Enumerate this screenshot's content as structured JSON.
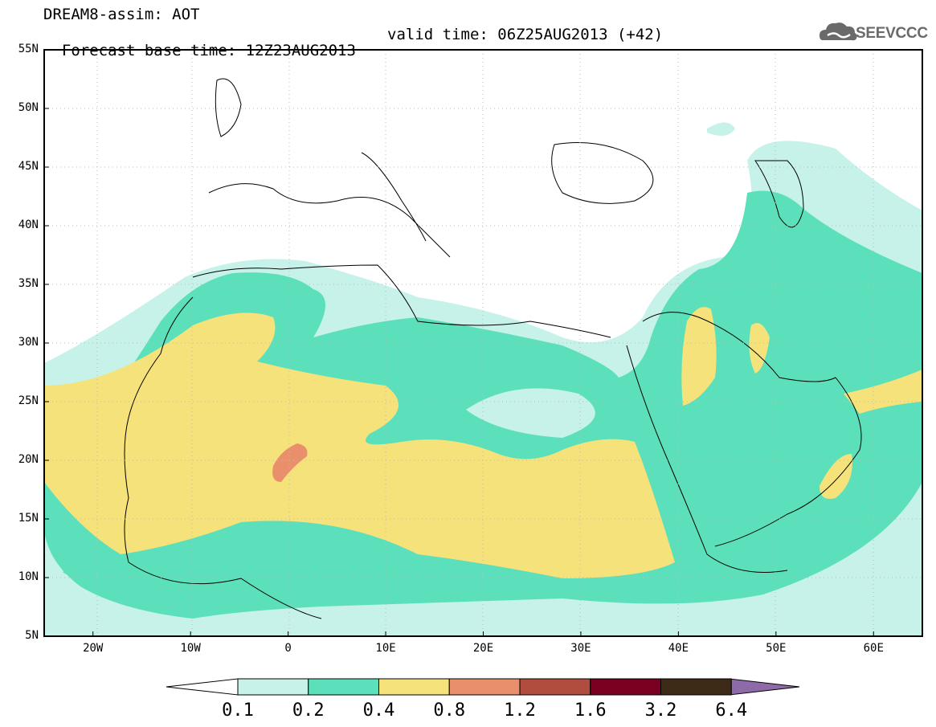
{
  "header": {
    "line1": "DREAM8-assim: AOT",
    "line2_left": "Forecast base time: 12Z23AUG2013",
    "line2_right": "valid time: 06Z25AUG2013 (+42)"
  },
  "logo": {
    "text": "SEEVCCC",
    "icon": "cloud-icon"
  },
  "map": {
    "lat_labels": [
      "55N",
      "50N",
      "45N",
      "40N",
      "35N",
      "30N",
      "25N",
      "20N",
      "15N",
      "10N",
      "5N"
    ],
    "lon_labels": [
      "20W",
      "10W",
      "0",
      "10E",
      "20E",
      "30E",
      "40E",
      "50E",
      "60E"
    ],
    "extent": {
      "lon": [
        -25,
        65
      ],
      "lat": [
        5,
        55
      ]
    }
  },
  "colorbar": {
    "labels": [
      "0.1",
      "0.2",
      "0.4",
      "0.8",
      "1.2",
      "1.6",
      "3.2",
      "6.4"
    ],
    "colors": [
      "#ffffff",
      "#c6f2ea",
      "#5ce0bb",
      "#f6e27a",
      "#e98f6c",
      "#b14d3e",
      "#7a0022",
      "#3d2b17",
      "#8f6aa8"
    ]
  }
}
